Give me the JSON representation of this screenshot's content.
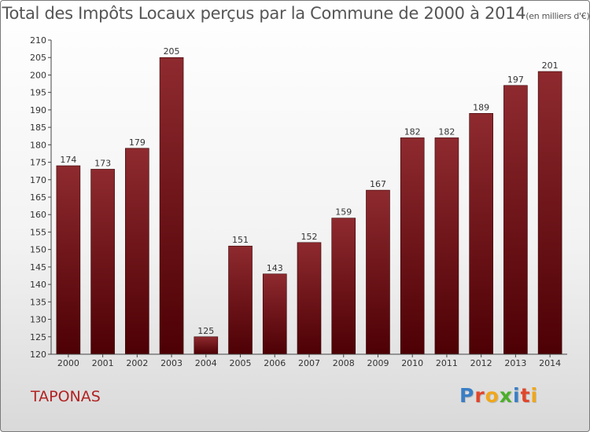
{
  "title": "Total des Impôts Locaux perçus par la Commune de 2000 à 2014",
  "title_unit": "(en milliers d'€)",
  "commune": "TAPONAS",
  "logo": {
    "letters": [
      "P",
      "r",
      "o",
      "x",
      "i",
      "t",
      "i"
    ],
    "colors": [
      "#3a7ec5",
      "#e0452b",
      "#f0a71a",
      "#4caf2a",
      "#3a7ec5",
      "#e0452b",
      "#f0a71a"
    ]
  },
  "chart_data": {
    "type": "bar",
    "categories": [
      "2000",
      "2001",
      "2002",
      "2003",
      "2004",
      "2005",
      "2006",
      "2007",
      "2008",
      "2009",
      "2010",
      "2011",
      "2012",
      "2013",
      "2014"
    ],
    "values": [
      174,
      173,
      179,
      205,
      125,
      151,
      143,
      152,
      159,
      167,
      182,
      182,
      189,
      197,
      201
    ],
    "ylim": [
      120,
      210
    ],
    "yticks": [
      120,
      125,
      130,
      135,
      140,
      145,
      150,
      155,
      160,
      165,
      170,
      175,
      180,
      185,
      190,
      195,
      200,
      205,
      210
    ],
    "grid": false,
    "bar_color": "#7a1a1e"
  }
}
